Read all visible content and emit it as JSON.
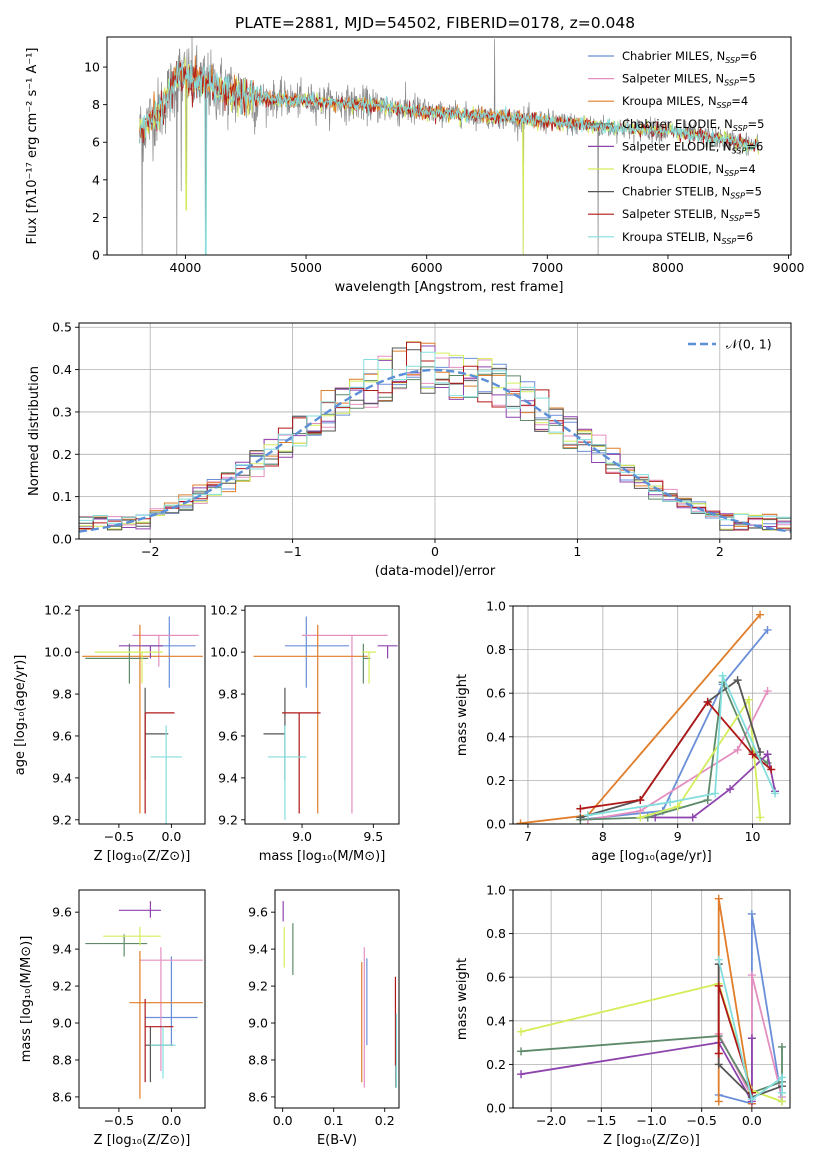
{
  "title": "PLATE=2881, MJD=54502, FIBERID=0178, z=0.048",
  "colors": {
    "Chabrier MILES": "#6a8fd8",
    "Salpeter MILES": "#e58fc0",
    "Kroupa MILES": "#e07d2a",
    "Chabrier ELODIE": "#5e8a6a",
    "Salpeter ELODIE": "#8e44ad",
    "Kroupa ELODIE": "#d4ed5a",
    "Chabrier STELIB": "#555555",
    "Salpeter STELIB": "#b01818",
    "Kroupa STELIB": "#84dede",
    "data": "#888888",
    "gauss": "#5b8fd8"
  },
  "legend_spectrum": [
    {
      "name": "Chabrier MILES",
      "n": "6"
    },
    {
      "name": "Salpeter MILES",
      "n": "5"
    },
    {
      "name": "Kroupa MILES",
      "n": "4"
    },
    {
      "name": "Chabrier ELODIE",
      "n": "5"
    },
    {
      "name": "Salpeter ELODIE",
      "n": "6"
    },
    {
      "name": "Kroupa ELODIE",
      "n": "4"
    },
    {
      "name": "Chabrier STELIB",
      "n": "5"
    },
    {
      "name": "Salpeter STELIB",
      "n": "5"
    },
    {
      "name": "Kroupa STELIB",
      "n": "6"
    }
  ],
  "legend_label_prefix": "N",
  "legend_label_sub": "SSP",
  "chart_data": [
    {
      "id": "spectrum",
      "type": "line",
      "xlabel": "wavelength [Angstrom, rest frame]",
      "ylabel": "Flux [fλ10⁻¹⁷ erg cm⁻² s⁻¹ A⁻¹]",
      "xlim": [
        3350,
        9020
      ],
      "ylim": [
        0,
        11.6
      ],
      "xticks": [
        4000,
        5000,
        6000,
        7000,
        8000,
        9000
      ],
      "yticks": [
        0,
        2,
        4,
        6,
        8,
        10
      ],
      "data_range": [
        3620,
        8750
      ],
      "continuum": [
        [
          3620,
          6.6
        ],
        [
          3800,
          7.8
        ],
        [
          3950,
          9.6
        ],
        [
          4200,
          9.0
        ],
        [
          4500,
          8.4
        ],
        [
          5000,
          8.2
        ],
        [
          5500,
          8.0
        ],
        [
          6000,
          7.6
        ],
        [
          6500,
          7.4
        ],
        [
          7000,
          7.1
        ],
        [
          7500,
          6.8
        ],
        [
          8000,
          6.6
        ],
        [
          8500,
          6.1
        ],
        [
          8750,
          5.8
        ]
      ],
      "features": [
        {
          "x": 3640,
          "y": 0,
          "label": ""
        },
        {
          "x": 3930,
          "y": 0,
          "label": ""
        },
        {
          "x": 3965,
          "y": 3.4,
          "label": ""
        },
        {
          "x": 4005,
          "y": 2.4,
          "label": ""
        },
        {
          "x": 4170,
          "y": 0,
          "label": ""
        },
        {
          "x": 6563,
          "y": 11.5,
          "label": ""
        },
        {
          "x": 6800,
          "y": 0,
          "label": ""
        },
        {
          "x": 7420,
          "y": 0,
          "label": ""
        }
      ]
    },
    {
      "id": "residuals",
      "type": "histogram",
      "xlabel": "(data-model)/error",
      "ylabel": "Normed distribution",
      "xlim": [
        -2.5,
        2.5
      ],
      "ylim": [
        0,
        0.51
      ],
      "xticks": [
        -2,
        -1,
        0,
        1,
        2
      ],
      "yticks": [
        0.0,
        0.1,
        0.2,
        0.3,
        0.4,
        0.5
      ],
      "grid": true,
      "legend": "$\\mathcal{N}(0,1)$",
      "legend_display": "𝒩(0, 1)",
      "bin_width": 0.1
    },
    {
      "id": "age_vs_Z",
      "type": "errorbar",
      "xlabel": "Z [log₁₀(Z/Z⊙)]",
      "ylabel": "age  [log₁₀(age/yr)]",
      "xlim": [
        -0.88,
        0.32
      ],
      "ylim": [
        9.18,
        10.22
      ],
      "xticks": [
        -0.5,
        0.0
      ],
      "yticks": [
        9.2,
        9.4,
        9.6,
        9.8,
        10.0,
        10.2
      ],
      "points": [
        {
          "series": "Chabrier MILES",
          "x": -0.02,
          "y": 10.03,
          "xerr": [
            0.25,
            0.25
          ],
          "yerr": [
            0.2,
            0.14
          ]
        },
        {
          "series": "Salpeter MILES",
          "x": -0.12,
          "y": 10.08,
          "xerr": [
            0.25,
            0.38
          ],
          "yerr": [
            0.15,
            0.0
          ]
        },
        {
          "series": "Kroupa MILES",
          "x": -0.3,
          "y": 9.98,
          "xerr": [
            0.55,
            0.6
          ],
          "yerr": [
            0.75,
            0.15
          ]
        },
        {
          "series": "Chabrier ELODIE",
          "x": -0.4,
          "y": 9.97,
          "xerr": [
            0.42,
            0.18
          ],
          "yerr": [
            0.12,
            0.07
          ]
        },
        {
          "series": "Salpeter ELODIE",
          "x": -0.2,
          "y": 10.03,
          "xerr": [
            0.3,
            0.12
          ],
          "yerr": [
            0.06,
            0.0
          ]
        },
        {
          "series": "Kroupa ELODIE",
          "x": -0.28,
          "y": 10.0,
          "xerr": [
            0.45,
            0.2
          ],
          "yerr": [
            0.15,
            0.0
          ]
        },
        {
          "series": "Chabrier STELIB",
          "x": -0.25,
          "y": 9.61,
          "xerr": [
            0.0,
            0.22
          ],
          "yerr": [
            0.22,
            0.22
          ]
        },
        {
          "series": "Salpeter STELIB",
          "x": -0.25,
          "y": 9.71,
          "xerr": [
            0.0,
            0.28
          ],
          "yerr": [
            0.48,
            0.0
          ]
        },
        {
          "series": "Kroupa STELIB",
          "x": -0.05,
          "y": 9.5,
          "xerr": [
            0.15,
            0.15
          ],
          "yerr": [
            0.4,
            0.15
          ]
        }
      ]
    },
    {
      "id": "age_vs_mass",
      "type": "errorbar",
      "xlabel": "mass [log₁₀(M/M⊙)]",
      "ylabel": "",
      "xlim": [
        8.6,
        9.68
      ],
      "ylim": [
        9.18,
        10.22
      ],
      "xticks": [
        9.0,
        9.5
      ],
      "yticks": [
        9.2,
        9.4,
        9.6,
        9.8,
        10.0,
        10.2
      ],
      "points": [
        {
          "series": "Chabrier MILES",
          "x": 9.03,
          "y": 10.03,
          "xerr": [
            0.15,
            0.3
          ],
          "yerr": [
            0.2,
            0.14
          ]
        },
        {
          "series": "Salpeter MILES",
          "x": 9.35,
          "y": 10.08,
          "xerr": [
            0.35,
            0.25
          ],
          "yerr": [
            0.85,
            0.0
          ]
        },
        {
          "series": "Kroupa MILES",
          "x": 9.11,
          "y": 9.98,
          "xerr": [
            0.45,
            0.35
          ],
          "yerr": [
            0.75,
            0.15
          ]
        },
        {
          "series": "Chabrier ELODIE",
          "x": 9.43,
          "y": 9.97,
          "xerr": [
            0.0,
            0.05
          ],
          "yerr": [
            0.12,
            0.07
          ]
        },
        {
          "series": "Salpeter ELODIE",
          "x": 9.6,
          "y": 10.03,
          "xerr": [
            0.07,
            0.07
          ],
          "yerr": [
            0.06,
            0.0
          ]
        },
        {
          "series": "Kroupa ELODIE",
          "x": 9.47,
          "y": 10.0,
          "xerr": [
            0.05,
            0.05
          ],
          "yerr": [
            0.15,
            0.0
          ]
        },
        {
          "series": "Chabrier STELIB",
          "x": 8.88,
          "y": 9.61,
          "xerr": [
            0.15,
            0.0
          ],
          "yerr": [
            0.22,
            0.22
          ]
        },
        {
          "series": "Salpeter STELIB",
          "x": 8.98,
          "y": 9.71,
          "xerr": [
            0.12,
            0.15
          ],
          "yerr": [
            0.48,
            0.0
          ]
        },
        {
          "series": "Kroupa STELIB",
          "x": 8.88,
          "y": 9.5,
          "xerr": [
            0.12,
            0.15
          ],
          "yerr": [
            0.3,
            0.15
          ]
        }
      ]
    },
    {
      "id": "weight_vs_age",
      "type": "line",
      "xlabel": "age  [log₁₀(age/yr)]",
      "ylabel": "mass weight",
      "xlim": [
        6.8,
        10.5
      ],
      "ylim": [
        0,
        1.0
      ],
      "xticks": [
        7,
        8,
        9,
        10
      ],
      "yticks": [
        0.0,
        0.2,
        0.4,
        0.6,
        0.8,
        1.0
      ],
      "grid": true,
      "series": [
        {
          "name": "Chabrier MILES",
          "x": [
            7.7,
            8.8,
            9.6,
            10.2
          ],
          "y": [
            0.02,
            0.06,
            0.64,
            0.89
          ]
        },
        {
          "name": "Salpeter MILES",
          "x": [
            7.8,
            8.5,
            9.8,
            10.2
          ],
          "y": [
            0.02,
            0.06,
            0.34,
            0.61
          ]
        },
        {
          "name": "Kroupa MILES",
          "x": [
            6.9,
            7.8,
            10.1
          ],
          "y": [
            0.003,
            0.04,
            0.96
          ]
        },
        {
          "name": "Chabrier ELODIE",
          "x": [
            7.7,
            8.6,
            9.4,
            9.6,
            10.0,
            10.2
          ],
          "y": [
            0.02,
            0.03,
            0.11,
            0.65,
            0.33,
            0.28
          ]
        },
        {
          "name": "Salpeter ELODIE",
          "x": [
            8.7,
            9.2,
            9.7,
            10.2,
            10.3
          ],
          "y": [
            0.03,
            0.03,
            0.16,
            0.32,
            0.15
          ]
        },
        {
          "name": "Kroupa ELODIE",
          "x": [
            8.5,
            9.0,
            9.95,
            10.1
          ],
          "y": [
            0.03,
            0.08,
            0.57,
            0.03
          ]
        },
        {
          "name": "Chabrier STELIB",
          "x": [
            7.7,
            8.5,
            9.4,
            9.8,
            10.1
          ],
          "y": [
            0.03,
            0.11,
            0.56,
            0.66,
            0.33
          ]
        },
        {
          "name": "Salpeter STELIB",
          "x": [
            7.7,
            8.5,
            9.4,
            10.0,
            10.25
          ],
          "y": [
            0.07,
            0.11,
            0.56,
            0.32,
            0.25
          ]
        },
        {
          "name": "Kroupa STELIB",
          "x": [
            7.8,
            8.9,
            9.5,
            9.6,
            10.3
          ],
          "y": [
            0.04,
            0.1,
            0.14,
            0.68,
            0.14
          ]
        }
      ]
    },
    {
      "id": "mass_vs_Z",
      "type": "errorbar",
      "xlabel": "Z [log₁₀(Z/Z⊙)]",
      "ylabel": "mass [log₁₀(M/M⊙)]",
      "xlim": [
        -0.88,
        0.32
      ],
      "ylim": [
        8.54,
        9.72
      ],
      "xticks": [
        -0.5,
        0.0
      ],
      "yticks": [
        8.6,
        8.8,
        9.0,
        9.2,
        9.4,
        9.6
      ],
      "points": [
        {
          "series": "Chabrier MILES",
          "x": 0.0,
          "y": 9.03,
          "xerr": [
            0.25,
            0.25
          ],
          "yerr": [
            0.15,
            0.33
          ]
        },
        {
          "series": "Salpeter MILES",
          "x": -0.1,
          "y": 9.34,
          "xerr": [
            0.2,
            0.4
          ],
          "yerr": [
            0.6,
            0.07
          ]
        },
        {
          "series": "Kroupa MILES",
          "x": -0.3,
          "y": 9.11,
          "xerr": [
            0.1,
            0.6
          ],
          "yerr": [
            0.52,
            0.28
          ]
        },
        {
          "series": "Chabrier ELODIE",
          "x": -0.45,
          "y": 9.43,
          "xerr": [
            0.37,
            0.22
          ],
          "yerr": [
            0.07,
            0.05
          ]
        },
        {
          "series": "Salpeter ELODIE",
          "x": -0.2,
          "y": 9.61,
          "xerr": [
            0.3,
            0.1
          ],
          "yerr": [
            0.04,
            0.05
          ]
        },
        {
          "series": "Kroupa ELODIE",
          "x": -0.3,
          "y": 9.47,
          "xerr": [
            0.35,
            0.2
          ],
          "yerr": [
            0.05,
            0.05
          ]
        },
        {
          "series": "Chabrier STELIB",
          "x": -0.2,
          "y": 8.88,
          "xerr": [
            0.05,
            0.22
          ],
          "yerr": [
            0.2,
            0.1
          ]
        },
        {
          "series": "Salpeter STELIB",
          "x": -0.25,
          "y": 8.98,
          "xerr": [
            0.0,
            0.27
          ],
          "yerr": [
            0.3,
            0.15
          ]
        },
        {
          "series": "Kroupa STELIB",
          "x": -0.08,
          "y": 8.88,
          "xerr": [
            0.12,
            0.12
          ],
          "yerr": [
            0.18,
            0.1
          ]
        }
      ]
    },
    {
      "id": "ebv",
      "type": "errorbar",
      "xlabel": "E(B-V)",
      "ylabel": "",
      "xlim": [
        -0.015,
        0.228
      ],
      "ylim": [
        8.54,
        9.72
      ],
      "xticks": [
        0.0,
        0.1,
        0.2
      ],
      "yticks": [
        8.6,
        8.8,
        9.0,
        9.2,
        9.4,
        9.6
      ],
      "points": [
        {
          "series": "Chabrier MILES",
          "x": 0.165,
          "y": 9.1,
          "yerr": [
            0.22,
            0.25
          ]
        },
        {
          "series": "Salpeter MILES",
          "x": 0.16,
          "y": 9.05,
          "yerr": [
            0.4,
            0.36
          ]
        },
        {
          "series": "Kroupa MILES",
          "x": 0.155,
          "y": 8.98,
          "yerr": [
            0.3,
            0.35
          ]
        },
        {
          "series": "Chabrier ELODIE",
          "x": 0.02,
          "y": 9.4,
          "yerr": [
            0.14,
            0.14
          ]
        },
        {
          "series": "Salpeter ELODIE",
          "x": 0.001,
          "y": 9.6,
          "yerr": [
            0.05,
            0.06
          ]
        },
        {
          "series": "Kroupa ELODIE",
          "x": 0.003,
          "y": 9.4,
          "yerr": [
            0.1,
            0.12
          ]
        },
        {
          "series": "Chabrier STELIB",
          "x": 0.222,
          "y": 8.85,
          "yerr": [
            0.2,
            0.2
          ]
        },
        {
          "series": "Salpeter STELIB",
          "x": 0.221,
          "y": 9.05,
          "yerr": [
            0.28,
            0.2
          ]
        },
        {
          "series": "Kroupa STELIB",
          "x": 0.223,
          "y": 8.85,
          "yerr": [
            0.2,
            0.2
          ]
        }
      ]
    },
    {
      "id": "weight_vs_Z",
      "type": "line",
      "xlabel": "Z [log₁₀(Z/Z⊙)]",
      "ylabel": "mass weight",
      "xlim": [
        -2.38,
        0.38
      ],
      "ylim": [
        0,
        1.0
      ],
      "xticks": [
        -2.0,
        -1.5,
        -1.0,
        -0.5,
        0.0
      ],
      "yticks": [
        0.0,
        0.2,
        0.4,
        0.6,
        0.8,
        1.0
      ],
      "grid": true,
      "series": [
        {
          "name": "Chabrier MILES",
          "x": [
            -0.33,
            0.0,
            0.0,
            0.3
          ],
          "y": [
            0.06,
            0.02,
            0.89,
            0.03
          ]
        },
        {
          "name": "Salpeter MILES",
          "x": [
            -0.33,
            0.0,
            0.0,
            0.3
          ],
          "y": [
            0.34,
            0.05,
            0.61,
            0.05
          ]
        },
        {
          "name": "Kroupa MILES",
          "x": [
            -0.33,
            -0.33,
            0.0
          ],
          "y": [
            0.03,
            0.96,
            0.02
          ]
        },
        {
          "name": "Chabrier ELODIE",
          "x": [
            -2.3,
            -0.33,
            0.0,
            0.3,
            0.3
          ],
          "y": [
            0.26,
            0.33,
            0.07,
            0.12,
            0.28
          ]
        },
        {
          "name": "Salpeter ELODIE",
          "x": [
            -2.3,
            -0.33,
            0.0,
            0.0
          ],
          "y": [
            0.155,
            0.3,
            0.03,
            0.32
          ]
        },
        {
          "name": "Kroupa ELODIE",
          "x": [
            -2.3,
            -0.33,
            0.0,
            0.3
          ],
          "y": [
            0.35,
            0.57,
            0.08,
            0.03
          ]
        },
        {
          "name": "Chabrier STELIB",
          "x": [
            -0.33,
            -0.33,
            0.0,
            0.3
          ],
          "y": [
            0.66,
            0.2,
            0.05,
            0.1
          ]
        },
        {
          "name": "Salpeter STELIB",
          "x": [
            -0.33,
            -0.33,
            0.0
          ],
          "y": [
            0.25,
            0.56,
            0.07
          ]
        },
        {
          "name": "Kroupa STELIB",
          "x": [
            -0.33,
            0.0,
            0.3,
            0.3
          ],
          "y": [
            0.68,
            0.04,
            0.14,
            0.07
          ]
        }
      ]
    }
  ]
}
